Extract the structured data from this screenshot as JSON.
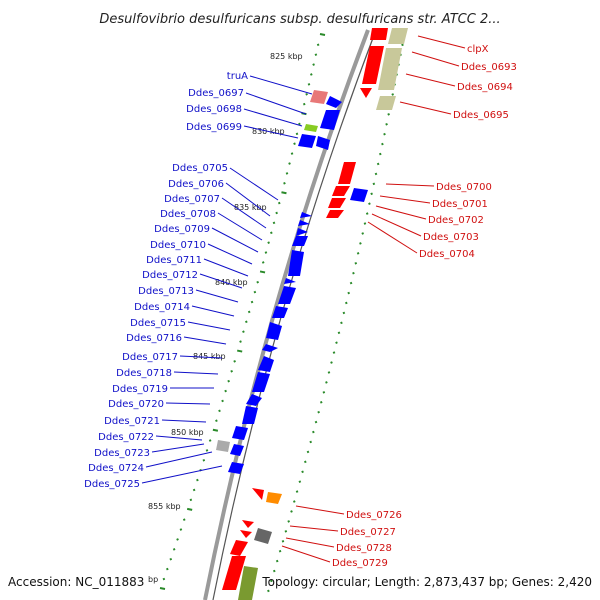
{
  "title": "Desulfovibrio desulfuricans subsp. desulfuricans str. ATCC 2...",
  "footer": {
    "accession": "Accession: NC_011883",
    "accession_tail": "bp",
    "summary": "Topology: circular; Length: 2,873,437 bp; Genes: 2,420"
  },
  "kbp_labels": [
    "825 kbp",
    "830 kbp",
    "835 kbp",
    "840 kbp",
    "845 kbp",
    "850 kbp",
    "855 kbp"
  ],
  "genes_left": [
    "truA",
    "Ddes_0697",
    "Ddes_0698",
    "Ddes_0699",
    "Ddes_0705",
    "Ddes_0706",
    "Ddes_0707",
    "Ddes_0708",
    "Ddes_0709",
    "Ddes_0710",
    "Ddes_0711",
    "Ddes_0712",
    "Ddes_0713",
    "Ddes_0714",
    "Ddes_0715",
    "Ddes_0716",
    "Ddes_0717",
    "Ddes_0718",
    "Ddes_0719",
    "Ddes_0720",
    "Ddes_0721",
    "Ddes_0722",
    "Ddes_0723",
    "Ddes_0724",
    "Ddes_0725"
  ],
  "genes_right": [
    "clpX",
    "Ddes_0693",
    "Ddes_0694",
    "Ddes_0695",
    "Ddes_0700",
    "Ddes_0701",
    "Ddes_0702",
    "Ddes_0703",
    "Ddes_0704",
    "Ddes_0726",
    "Ddes_0727",
    "Ddes_0728",
    "Ddes_0729"
  ],
  "colors": {
    "left_label": "#1010c8",
    "right_label": "#d01010",
    "forward_gene": "#ff0000",
    "reverse_gene": "#0000ff",
    "olive_feature": "#c8c89a",
    "tick": "#2a8a2a",
    "backbone": "#888888"
  }
}
